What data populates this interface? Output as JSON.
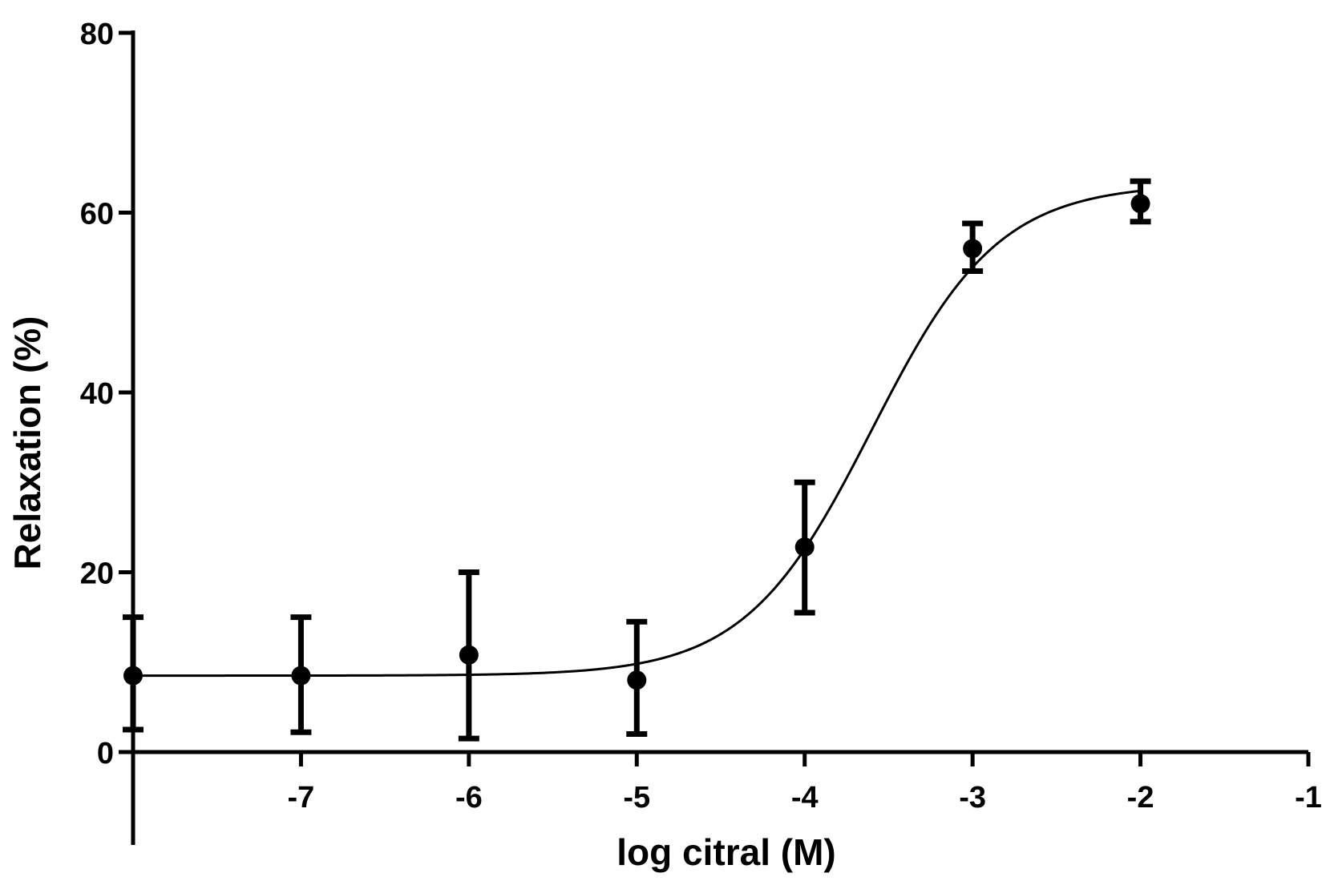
{
  "chart_data": {
    "type": "scatter",
    "xlabel": "log citral (M)",
    "ylabel": "Relaxation (%)",
    "xlim": [
      -8,
      -1
    ],
    "ylim": [
      0,
      80
    ],
    "x_ticks": [
      -7,
      -6,
      -5,
      -4,
      -3,
      -2,
      -1
    ],
    "x_tick_labels": [
      "-7",
      "-6",
      "-5",
      "-4",
      "-3",
      "-2",
      "-1"
    ],
    "y_ticks": [
      0,
      20,
      40,
      60,
      80
    ],
    "y_tick_labels": [
      "0",
      "20",
      "40",
      "60",
      "80"
    ],
    "grid": false,
    "series": [
      {
        "points": [
          {
            "x": -8,
            "y": 8.5,
            "err_low": 2.5,
            "err_high": 15
          },
          {
            "x": -7,
            "y": 8.5,
            "err_low": 2.2,
            "err_high": 15
          },
          {
            "x": -6,
            "y": 10.8,
            "err_low": 1.5,
            "err_high": 20
          },
          {
            "x": -5,
            "y": 8.0,
            "err_low": 2.0,
            "err_high": 14.5
          },
          {
            "x": -4,
            "y": 22.8,
            "err_low": 15.5,
            "err_high": 30
          },
          {
            "x": -3,
            "y": 56.0,
            "err_low": 53.5,
            "err_high": 58.8
          },
          {
            "x": -2,
            "y": 61.0,
            "err_low": 59.0,
            "err_high": 63.5
          }
        ]
      }
    ],
    "fit_curve": {
      "type": "sigmoidal dose-response",
      "bottom": 8.5,
      "top": 63.2,
      "log_ec50": -3.6,
      "hill_slope": 1.15
    },
    "colors": {
      "markers": "#000000",
      "curve": "#000000",
      "axes": "#000000"
    }
  }
}
